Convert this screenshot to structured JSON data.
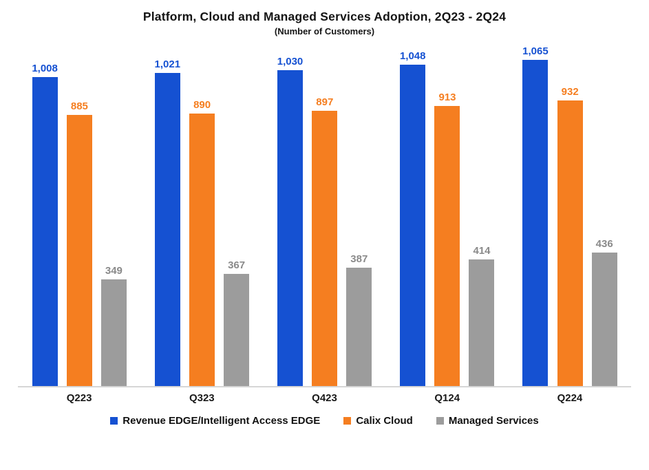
{
  "chart_data": {
    "type": "bar",
    "title": "Platform, Cloud and Managed Services Adoption, 2Q23 - 2Q24",
    "subtitle": "(Number of Customers)",
    "categories": [
      "Q223",
      "Q323",
      "Q423",
      "Q124",
      "Q224"
    ],
    "series": [
      {
        "name": "Revenue EDGE/Intelligent Access EDGE",
        "color": "#1551d2",
        "label_color": "#1551d2",
        "values": [
          1008,
          1021,
          1030,
          1048,
          1065
        ]
      },
      {
        "name": "Calix Cloud",
        "color": "#f57e20",
        "label_color": "#f57e20",
        "values": [
          885,
          890,
          897,
          913,
          932
        ]
      },
      {
        "name": "Managed Services",
        "color": "#9c9c9c",
        "label_color": "#8a8a8a",
        "values": [
          349,
          367,
          387,
          414,
          436
        ]
      }
    ],
    "ylim": [
      0,
      1100
    ],
    "grid": false,
    "legend_position": "bottom",
    "value_labels": true,
    "axis_line_color": "#d6d6d6"
  }
}
